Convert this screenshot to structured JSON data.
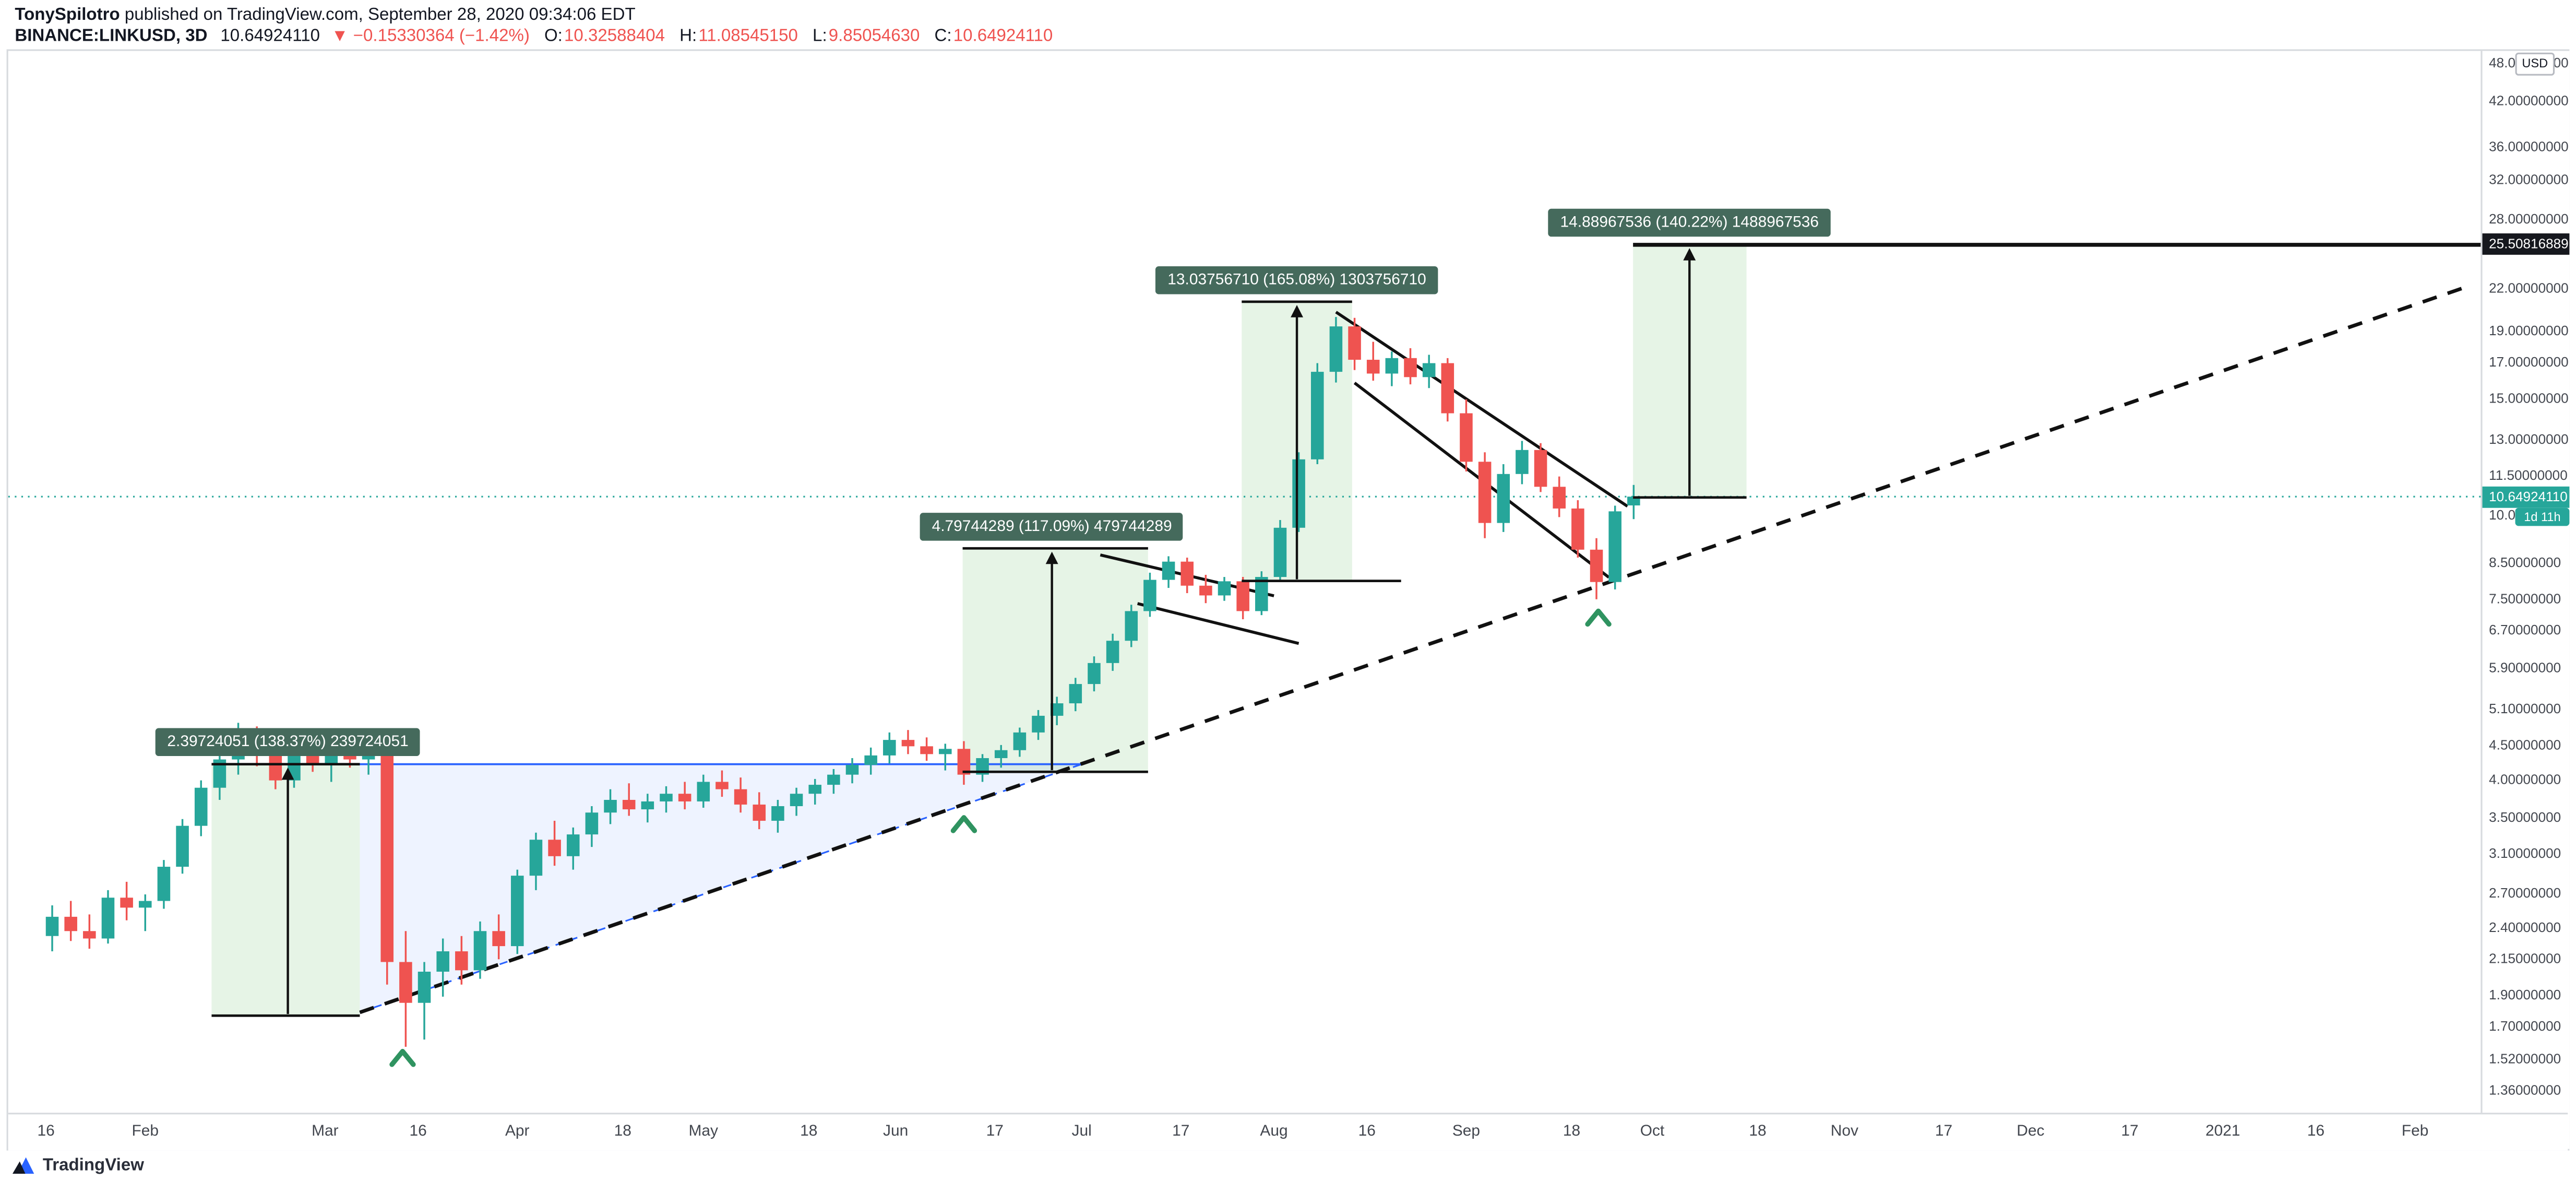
{
  "header": {
    "author": "TonySpilotro",
    "published": " published on TradingView.com, September 28, 2020 09:34:06 EDT",
    "symbol": "BINANCE:LINKUSD, 3D",
    "last_price": "10.64924110",
    "change": "▼ −0.15330364 (−1.42%)",
    "ohlc": {
      "o_label": "O:",
      "o_value": "10.32588404",
      "h_label": "H:",
      "h_value": "11.08545150",
      "l_label": "L:",
      "l_value": "9.85054630",
      "c_label": "C:",
      "c_value": "10.64924110"
    }
  },
  "price_axis": {
    "currency_chip": "USD",
    "decimals": 8,
    "tick_values": [
      48,
      42,
      36,
      32,
      28,
      22,
      19,
      17,
      15,
      13,
      11.5,
      10,
      8.5,
      7.5,
      6.7,
      5.9,
      5.1,
      4.5,
      4,
      3.5,
      3.1,
      2.7,
      2.4,
      2.15,
      1.9,
      1.7,
      1.52,
      1.36
    ],
    "level_badge_label": "25.50816889",
    "current_badge_label": "10.64924110",
    "countdown_label": "1d 11h"
  },
  "time_axis": [
    {
      "d": 0,
      "t": "16"
    },
    {
      "d": 16,
      "t": "Feb"
    },
    {
      "d": 45,
      "t": "Mar"
    },
    {
      "d": 60,
      "t": "16"
    },
    {
      "d": 76,
      "t": "Apr"
    },
    {
      "d": 93,
      "t": "18"
    },
    {
      "d": 106,
      "t": "May"
    },
    {
      "d": 123,
      "t": "18"
    },
    {
      "d": 137,
      "t": "Jun"
    },
    {
      "d": 153,
      "t": "17"
    },
    {
      "d": 167,
      "t": "Jul"
    },
    {
      "d": 183,
      "t": "17"
    },
    {
      "d": 198,
      "t": "Aug"
    },
    {
      "d": 213,
      "t": "16"
    },
    {
      "d": 229,
      "t": "Sep"
    },
    {
      "d": 246,
      "t": "18"
    },
    {
      "d": 259,
      "t": "Oct"
    },
    {
      "d": 276,
      "t": "18"
    },
    {
      "d": 290,
      "t": "Nov"
    },
    {
      "d": 306,
      "t": "17"
    },
    {
      "d": 320,
      "t": "Dec"
    },
    {
      "d": 336,
      "t": "17"
    },
    {
      "d": 351,
      "t": "2021"
    },
    {
      "d": 366,
      "t": "16"
    },
    {
      "d": 382,
      "t": "Feb"
    }
  ],
  "footer": {
    "brand": "TradingView"
  },
  "chart_data": {
    "type": "candlestick",
    "title": "BINANCE:LINKUSD 3D",
    "scale": "log",
    "price_range": [
      1.36,
      48
    ],
    "current_price": 10.6492411,
    "level_price": 25.50816889,
    "colors": {
      "up": "#26a69a",
      "down": "#ef5350",
      "measure_fill": "rgba(76,175,80,0.14)",
      "measure_label_bg": "#456a5c",
      "triangle_stroke": "#2962ff",
      "triangle_fill": "rgba(41,98,255,0.08)",
      "trend_black": "#111111",
      "marker_green": "#2f9360",
      "current_line": "#26a69a"
    },
    "candles_start_day": 1,
    "candles_day_step": 3,
    "candles_ohlc": [
      [
        2.32,
        2.58,
        2.2,
        2.48
      ],
      [
        2.48,
        2.62,
        2.28,
        2.36
      ],
      [
        2.36,
        2.5,
        2.22,
        2.3
      ],
      [
        2.3,
        2.72,
        2.26,
        2.65
      ],
      [
        2.65,
        2.8,
        2.45,
        2.56
      ],
      [
        2.56,
        2.68,
        2.36,
        2.62
      ],
      [
        2.62,
        3.02,
        2.55,
        2.95
      ],
      [
        2.95,
        3.48,
        2.88,
        3.4
      ],
      [
        3.4,
        3.98,
        3.28,
        3.88
      ],
      [
        3.88,
        4.42,
        3.72,
        4.28
      ],
      [
        4.28,
        4.86,
        4.06,
        4.62
      ],
      [
        4.62,
        4.8,
        4.18,
        4.36
      ],
      [
        4.36,
        4.56,
        3.86,
        3.98
      ],
      [
        3.98,
        4.44,
        3.88,
        4.34
      ],
      [
        4.34,
        4.62,
        4.1,
        4.22
      ],
      [
        4.22,
        4.5,
        3.96,
        4.42
      ],
      [
        4.42,
        4.6,
        4.16,
        4.28
      ],
      [
        4.28,
        4.52,
        4.06,
        4.44
      ],
      [
        4.44,
        4.5,
        1.96,
        2.12
      ],
      [
        2.12,
        2.36,
        1.58,
        1.84
      ],
      [
        1.84,
        2.12,
        1.62,
        2.05
      ],
      [
        2.05,
        2.3,
        1.88,
        2.2
      ],
      [
        2.2,
        2.32,
        1.96,
        2.06
      ],
      [
        2.06,
        2.44,
        2.0,
        2.36
      ],
      [
        2.36,
        2.5,
        2.14,
        2.24
      ],
      [
        2.24,
        2.92,
        2.18,
        2.86
      ],
      [
        2.86,
        3.32,
        2.72,
        3.24
      ],
      [
        3.24,
        3.46,
        2.96,
        3.06
      ],
      [
        3.06,
        3.38,
        2.92,
        3.3
      ],
      [
        3.3,
        3.64,
        3.16,
        3.56
      ],
      [
        3.56,
        3.86,
        3.42,
        3.72
      ],
      [
        3.72,
        3.94,
        3.52,
        3.6
      ],
      [
        3.6,
        3.8,
        3.44,
        3.7
      ],
      [
        3.7,
        3.9,
        3.56,
        3.8
      ],
      [
        3.8,
        3.96,
        3.6,
        3.7
      ],
      [
        3.7,
        4.06,
        3.62,
        3.96
      ],
      [
        3.96,
        4.12,
        3.76,
        3.86
      ],
      [
        3.86,
        4.02,
        3.56,
        3.66
      ],
      [
        3.66,
        3.82,
        3.36,
        3.46
      ],
      [
        3.46,
        3.72,
        3.32,
        3.64
      ],
      [
        3.64,
        3.88,
        3.52,
        3.8
      ],
      [
        3.8,
        4.0,
        3.66,
        3.92
      ],
      [
        3.92,
        4.14,
        3.8,
        4.06
      ],
      [
        4.06,
        4.3,
        3.94,
        4.2
      ],
      [
        4.2,
        4.46,
        4.06,
        4.34
      ],
      [
        4.34,
        4.7,
        4.22,
        4.58
      ],
      [
        4.58,
        4.74,
        4.36,
        4.48
      ],
      [
        4.48,
        4.62,
        4.26,
        4.36
      ],
      [
        4.36,
        4.52,
        4.12,
        4.44
      ],
      [
        4.44,
        4.56,
        3.92,
        4.06
      ],
      [
        4.06,
        4.36,
        3.96,
        4.3
      ],
      [
        4.3,
        4.5,
        4.16,
        4.42
      ],
      [
        4.42,
        4.78,
        4.32,
        4.7
      ],
      [
        4.7,
        5.08,
        4.58,
        4.98
      ],
      [
        4.98,
        5.32,
        4.82,
        5.2
      ],
      [
        5.2,
        5.68,
        5.06,
        5.56
      ],
      [
        5.56,
        6.12,
        5.42,
        5.98
      ],
      [
        5.98,
        6.62,
        5.82,
        6.46
      ],
      [
        6.46,
        7.32,
        6.32,
        7.16
      ],
      [
        7.16,
        8.18,
        7.02,
        7.98
      ],
      [
        7.98,
        8.66,
        7.76,
        8.5
      ],
      [
        8.5,
        8.62,
        7.62,
        7.82
      ],
      [
        7.82,
        8.12,
        7.36,
        7.56
      ],
      [
        7.56,
        8.06,
        7.42,
        7.94
      ],
      [
        7.94,
        8.06,
        6.96,
        7.16
      ],
      [
        7.16,
        8.22,
        7.06,
        8.06
      ],
      [
        8.06,
        9.82,
        7.92,
        9.56
      ],
      [
        9.56,
        12.42,
        9.42,
        12.12
      ],
      [
        12.12,
        16.92,
        11.92,
        16.42
      ],
      [
        16.42,
        19.86,
        15.82,
        19.22
      ],
      [
        19.22,
        19.8,
        16.52,
        17.12
      ],
      [
        17.12,
        18.22,
        15.92,
        16.32
      ],
      [
        16.32,
        17.62,
        15.62,
        17.22
      ],
      [
        17.22,
        17.82,
        15.72,
        16.12
      ],
      [
        16.12,
        17.42,
        15.52,
        16.92
      ],
      [
        16.92,
        17.22,
        13.82,
        14.22
      ],
      [
        14.22,
        14.92,
        11.62,
        12.02
      ],
      [
        12.02,
        12.42,
        9.22,
        9.72
      ],
      [
        9.72,
        11.92,
        9.42,
        11.52
      ],
      [
        11.52,
        12.92,
        11.12,
        12.52
      ],
      [
        12.52,
        12.82,
        10.82,
        11.02
      ],
      [
        11.02,
        11.42,
        9.92,
        10.22
      ],
      [
        10.22,
        10.52,
        8.62,
        8.86
      ],
      [
        8.86,
        9.22,
        7.46,
        7.92
      ],
      [
        7.92,
        10.32,
        7.72,
        10.12
      ],
      [
        10.33,
        11.09,
        9.85,
        10.65
      ]
    ],
    "trendlines": [
      {
        "name": "main-dashed-uptrend-line",
        "d1": 50.6,
        "p1": 1.78,
        "d2": 390,
        "p2": 22.0,
        "dash": "9,7",
        "w": 2.2
      },
      {
        "name": "jul-flag-upper-line",
        "d1": 170,
        "p1": 8.7,
        "d2": 198,
        "p2": 7.55,
        "dash": "",
        "w": 1.8
      },
      {
        "name": "jul-flag-lower-line",
        "d1": 176,
        "p1": 7.35,
        "d2": 202,
        "p2": 6.4,
        "dash": "",
        "w": 1.8
      },
      {
        "name": "sep-channel-upper-line",
        "d1": 208,
        "p1": 20.2,
        "d2": 255,
        "p2": 10.3,
        "dash": "",
        "w": 1.8
      },
      {
        "name": "sep-channel-lower-line",
        "d1": 211,
        "p1": 15.8,
        "d2": 252,
        "p2": 8.05,
        "dash": "",
        "w": 1.8
      }
    ],
    "triangle": {
      "top_line_start_day": 26.7,
      "left_day": 50.6,
      "apex_day": 167,
      "top_price": 4.21,
      "low_price": 1.78
    },
    "measures": [
      {
        "label": "2.39724051 (138.37%) 239724051",
        "value": 2.39724051,
        "percent": 138.37,
        "d1": 26.7,
        "d2": 50.6,
        "p_low": 1.76,
        "p_high": 4.21,
        "arrow_d": 39.0,
        "top_line": [
          26.7,
          50.6
        ],
        "bottom_line": [
          26.7,
          50.6
        ]
      },
      {
        "label": "4.79744289 (117.09%) 479744289",
        "value": 4.79744289,
        "percent": 117.09,
        "d1": 147.8,
        "d2": 177.7,
        "p_low": 4.1,
        "p_high": 8.9,
        "arrow_d": 162.2,
        "top_line": [
          147.8,
          177.7
        ],
        "bottom_line": [
          147.8,
          177.7
        ]
      },
      {
        "label": "13.03756710 (165.08%) 1303756710",
        "value": 13.0375671,
        "percent": 165.08,
        "d1": 192.8,
        "d2": 210.6,
        "p_low": 7.95,
        "p_high": 20.94,
        "arrow_d": 201.7,
        "top_line": [
          192.8,
          210.6
        ],
        "bottom_line": [
          192.8,
          218.5
        ]
      },
      {
        "label": "14.88967536 (140.22%) 1488967536",
        "value": 14.88967536,
        "percent": 140.22,
        "d1": 255.9,
        "d2": 274.2,
        "p_low": 10.62,
        "p_high": 25.50816889,
        "arrow_d": 265.0,
        "top_line": [
          255.9,
          393
        ],
        "bottom_line": [
          255.9,
          274.2
        ]
      }
    ],
    "markers": [
      {
        "d": 57.5,
        "p": 1.52
      },
      {
        "d": 148,
        "p": 3.42
      },
      {
        "d": 250.3,
        "p": 7.0
      }
    ]
  }
}
